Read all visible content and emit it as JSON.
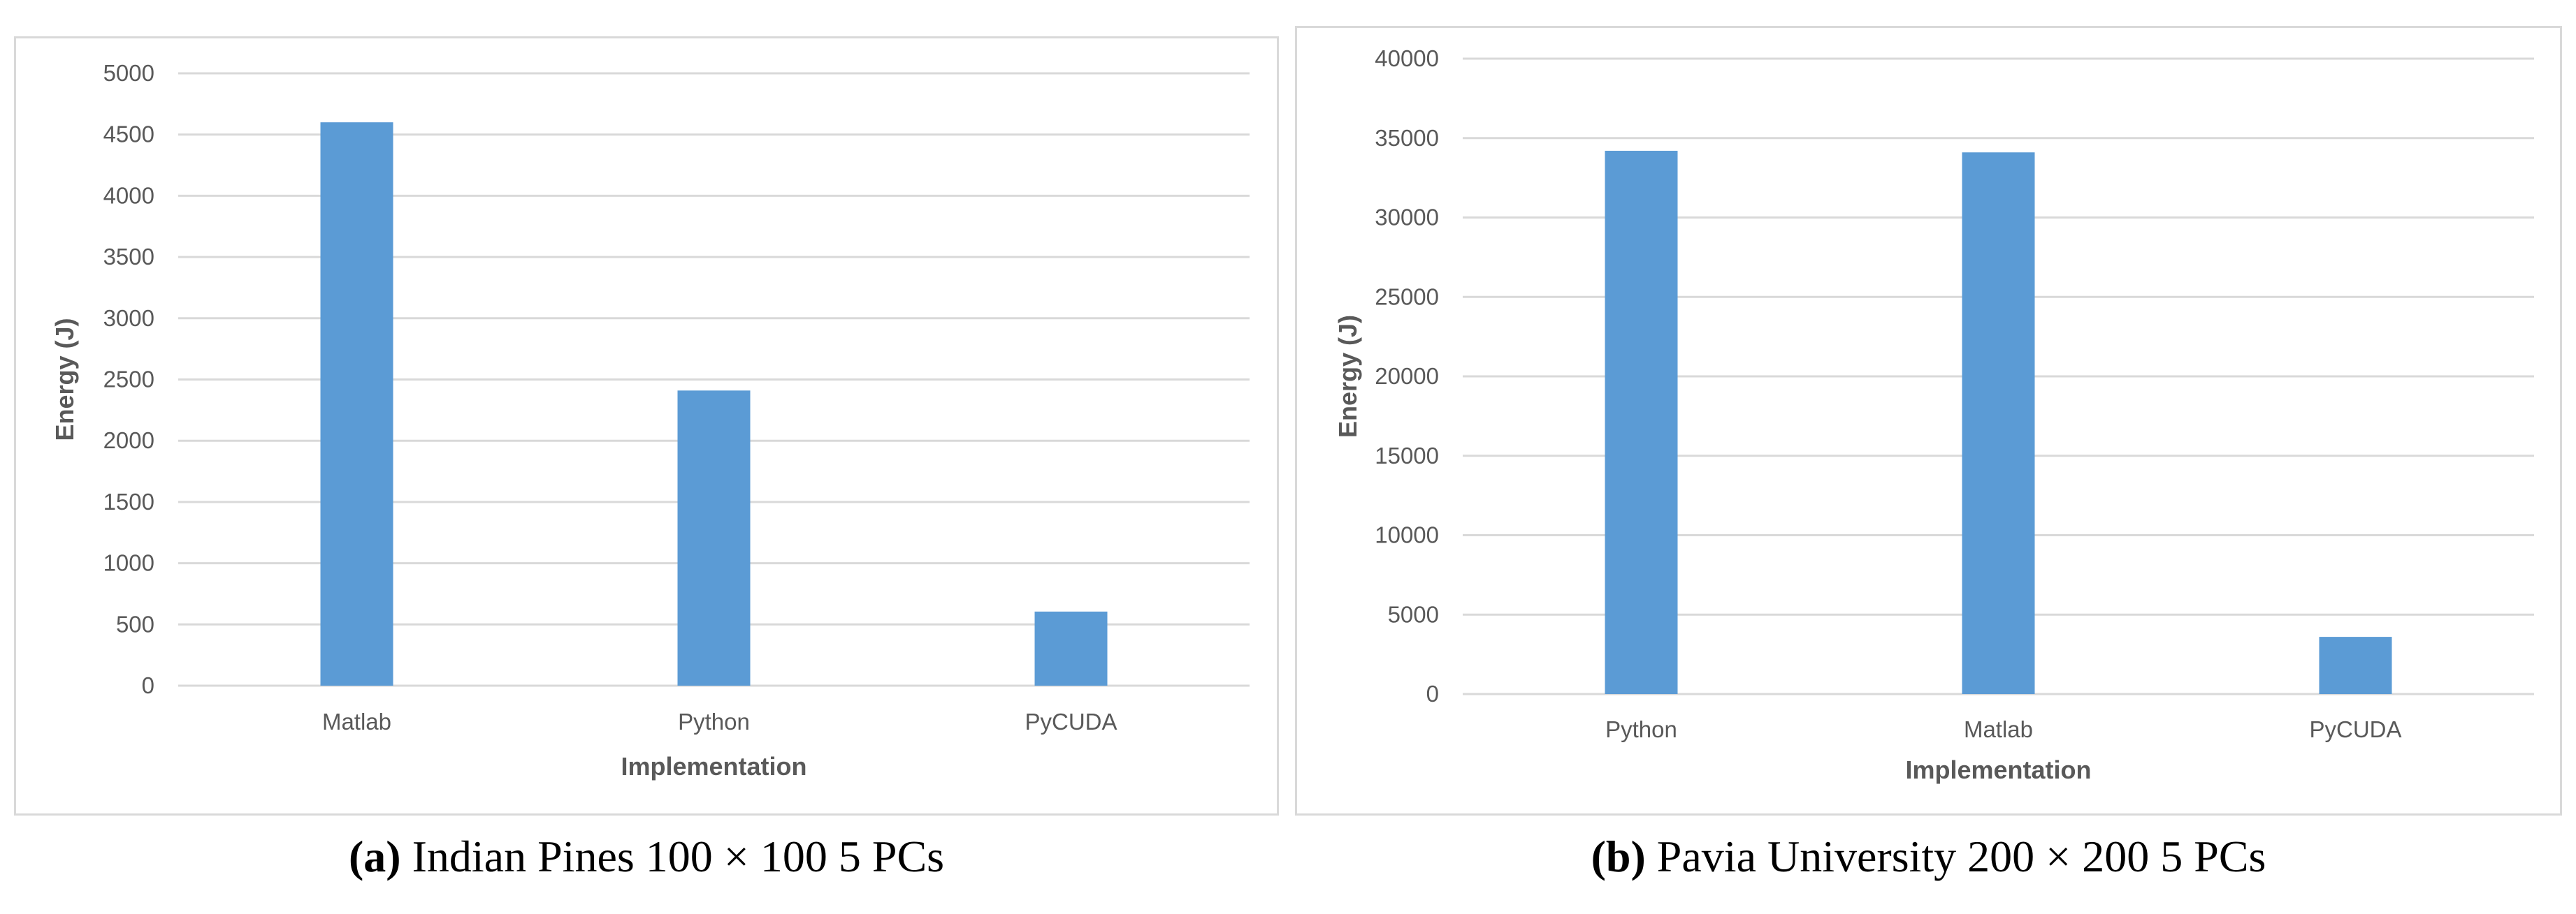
{
  "chart_data": [
    {
      "type": "bar",
      "id": "a",
      "title": "",
      "categories": [
        "Matlab",
        "Python",
        "PyCUDA"
      ],
      "values": [
        4600,
        2410,
        605
      ],
      "series": [
        {
          "name": "Energy",
          "values": [
            4600,
            2410,
            605
          ]
        }
      ],
      "xlabel": "Implementation",
      "ylabel": "Energy (J)",
      "ylim": [
        0,
        5000
      ],
      "yticks": [
        "0",
        "500",
        "1000",
        "1500",
        "2000",
        "2500",
        "3000",
        "3500",
        "4000",
        "4500",
        "5000"
      ],
      "grid": true,
      "color": "#5b9bd5"
    },
    {
      "type": "bar",
      "id": "b",
      "title": "",
      "categories": [
        "Python",
        "Matlab",
        "PyCUDA"
      ],
      "values": [
        34200,
        34100,
        3600
      ],
      "series": [
        {
          "name": "Energy",
          "values": [
            34200,
            34100,
            3600
          ]
        }
      ],
      "xlabel": "Implementation",
      "ylabel": "Energy (J)",
      "ylim": [
        0,
        40000
      ],
      "yticks": [
        "0",
        "5000",
        "10000",
        "15000",
        "20000",
        "25000",
        "30000",
        "35000",
        "40000"
      ],
      "grid": true,
      "color": "#5b9bd5"
    }
  ],
  "captions": {
    "a": {
      "label": "(a)",
      "text": "Indian Pines 100 × 100 5 PCs"
    },
    "b": {
      "label": "(b)",
      "text": "Pavia University 200 × 200 5 PCs"
    }
  }
}
